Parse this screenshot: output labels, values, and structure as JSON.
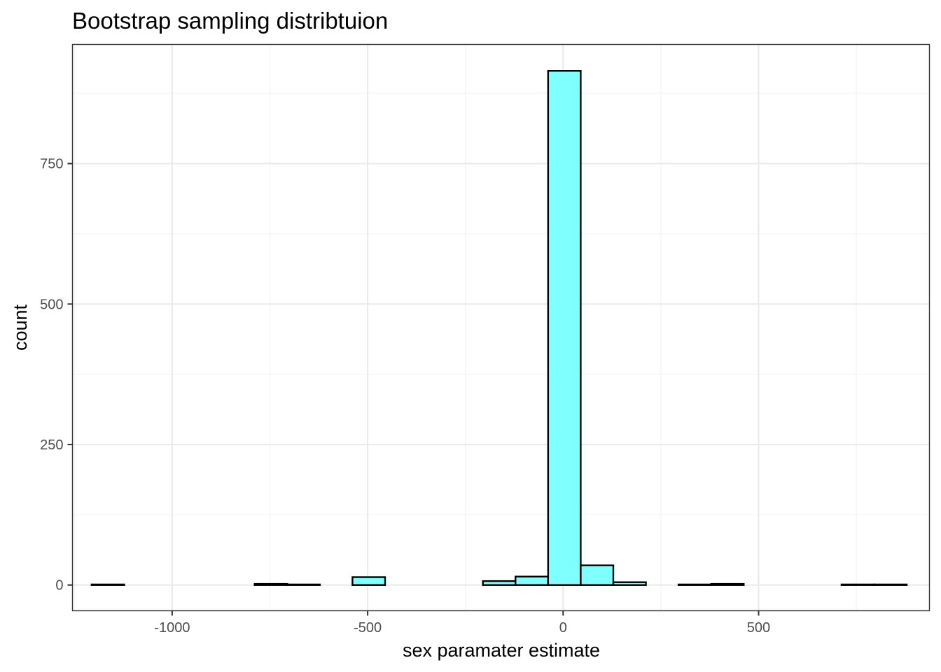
{
  "chart_data": {
    "type": "bar",
    "title": "Bootstrap sampling distribtuion",
    "xlabel": "sex paramater estimate",
    "ylabel": "count",
    "fill_color": "#80ffff",
    "outline_color": "#000000",
    "xlim": [
      -1255,
      937
    ],
    "ylim": [
      -45.8,
      962
    ],
    "x_ticks": [
      -1000,
      -500,
      0,
      500
    ],
    "x_tick_labels": [
      "-1000",
      "-500",
      "0",
      "500"
    ],
    "y_ticks": [
      0,
      250,
      500,
      750
    ],
    "y_tick_labels": [
      "0",
      "250",
      "500",
      "750"
    ],
    "grid": true,
    "bins": [
      {
        "x0": -1206.0,
        "x1": -1122.6,
        "count": 1
      },
      {
        "x0": -1122.6,
        "x1": -1039.2,
        "count": 0
      },
      {
        "x0": -1039.2,
        "x1": -955.8,
        "count": 0
      },
      {
        "x0": -955.8,
        "x1": -872.4,
        "count": 0
      },
      {
        "x0": -872.4,
        "x1": -789.0,
        "count": 0
      },
      {
        "x0": -789.0,
        "x1": -705.6,
        "count": 2
      },
      {
        "x0": -705.6,
        "x1": -622.2,
        "count": 1
      },
      {
        "x0": -622.2,
        "x1": -538.8,
        "count": 0
      },
      {
        "x0": -538.8,
        "x1": -455.4,
        "count": 14
      },
      {
        "x0": -455.4,
        "x1": -372.0,
        "count": 0
      },
      {
        "x0": -372.0,
        "x1": -288.6,
        "count": 0
      },
      {
        "x0": -288.6,
        "x1": -205.2,
        "count": 0
      },
      {
        "x0": -205.2,
        "x1": -121.8,
        "count": 7
      },
      {
        "x0": -121.8,
        "x1": -38.4,
        "count": 15
      },
      {
        "x0": -38.4,
        "x1": 45.0,
        "count": 915
      },
      {
        "x0": 45.0,
        "x1": 128.4,
        "count": 35
      },
      {
        "x0": 128.4,
        "x1": 211.8,
        "count": 5
      },
      {
        "x0": 211.8,
        "x1": 295.2,
        "count": 0
      },
      {
        "x0": 295.2,
        "x1": 378.6,
        "count": 1
      },
      {
        "x0": 378.6,
        "x1": 462.0,
        "count": 2
      },
      {
        "x0": 462.0,
        "x1": 545.4,
        "count": 0
      },
      {
        "x0": 545.4,
        "x1": 628.8,
        "count": 0
      },
      {
        "x0": 628.8,
        "x1": 712.2,
        "count": 0
      },
      {
        "x0": 712.2,
        "x1": 795.6,
        "count": 1
      },
      {
        "x0": 795.6,
        "x1": 879.0,
        "count": 1
      }
    ]
  }
}
